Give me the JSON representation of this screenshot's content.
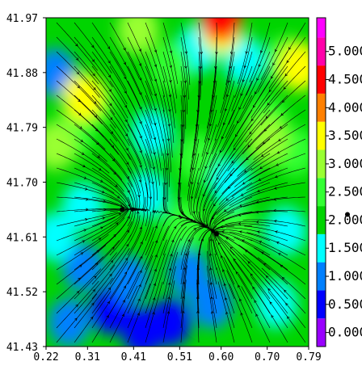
{
  "chart_data": {
    "type": "heatmap",
    "title": "",
    "xlabel": "",
    "ylabel": "",
    "xlim": [
      0.22,
      0.79
    ],
    "ylim": [
      41.43,
      41.97
    ],
    "x_ticks": [
      "0.22",
      "0.31",
      "0.41",
      "0.51",
      "0.60",
      "0.70",
      "0.79"
    ],
    "y_ticks": [
      "41.43",
      "41.52",
      "41.61",
      "41.70",
      "41.79",
      "41.88",
      "41.97"
    ],
    "overlay": "streamlines",
    "colorbar": {
      "ticks": [
        "0.000",
        "0.500",
        "1.000",
        "1.500",
        "2.000",
        "2.500",
        "3.000",
        "3.500",
        "4.000",
        "4.500",
        "5.000"
      ],
      "bands": [
        {
          "from": -0.25,
          "to": 0.25,
          "color": "#9900ff"
        },
        {
          "from": 0.25,
          "to": 0.75,
          "color": "#0000ff"
        },
        {
          "from": 0.75,
          "to": 1.25,
          "color": "#0080ff"
        },
        {
          "from": 1.25,
          "to": 1.75,
          "color": "#00ffff"
        },
        {
          "from": 1.75,
          "to": 2.25,
          "color": "#00d400"
        },
        {
          "from": 2.25,
          "to": 2.75,
          "color": "#33ff33"
        },
        {
          "from": 2.75,
          "to": 3.25,
          "color": "#99ff33"
        },
        {
          "from": 3.25,
          "to": 3.75,
          "color": "#ffff00"
        },
        {
          "from": 3.75,
          "to": 4.25,
          "color": "#ff8000"
        },
        {
          "from": 4.25,
          "to": 4.75,
          "color": "#ff0000"
        },
        {
          "from": 4.75,
          "to": 5.25,
          "color": "#ff00aa"
        },
        {
          "from": 5.25,
          "to": 5.6,
          "color": "#ff00ff"
        }
      ]
    },
    "points": [
      {
        "x": 0.385,
        "y": 41.655
      },
      {
        "x": 0.59,
        "y": 41.615
      }
    ],
    "field_patches": [
      {
        "x": 0.43,
        "y": 41.455,
        "v": 0.4
      },
      {
        "x": 0.49,
        "y": 41.47,
        "v": 0.4
      },
      {
        "x": 0.36,
        "y": 41.49,
        "v": 0.6
      },
      {
        "x": 0.27,
        "y": 41.47,
        "v": 1.0
      },
      {
        "x": 0.3,
        "y": 41.56,
        "v": 1.1
      },
      {
        "x": 0.4,
        "y": 41.54,
        "v": 1.0
      },
      {
        "x": 0.53,
        "y": 41.55,
        "v": 0.9
      },
      {
        "x": 0.58,
        "y": 41.5,
        "v": 1.1
      },
      {
        "x": 0.72,
        "y": 41.5,
        "v": 1.5
      },
      {
        "x": 0.3,
        "y": 41.66,
        "v": 1.5
      },
      {
        "x": 0.24,
        "y": 41.61,
        "v": 1.3
      },
      {
        "x": 0.44,
        "y": 41.68,
        "v": 1.6
      },
      {
        "x": 0.45,
        "y": 41.78,
        "v": 1.4
      },
      {
        "x": 0.74,
        "y": 41.62,
        "v": 1.6
      },
      {
        "x": 0.62,
        "y": 41.7,
        "v": 1.6
      },
      {
        "x": 0.24,
        "y": 41.88,
        "v": 1.2
      },
      {
        "x": 0.55,
        "y": 41.92,
        "v": 1.5
      },
      {
        "x": 0.65,
        "y": 41.9,
        "v": 1.5
      },
      {
        "x": 0.32,
        "y": 41.83,
        "v": 2.7
      },
      {
        "x": 0.28,
        "y": 41.78,
        "v": 2.4
      },
      {
        "x": 0.49,
        "y": 41.89,
        "v": 2.6
      },
      {
        "x": 0.42,
        "y": 41.95,
        "v": 2.8
      },
      {
        "x": 0.55,
        "y": 41.74,
        "v": 2.5
      },
      {
        "x": 0.52,
        "y": 41.63,
        "v": 2.4
      },
      {
        "x": 0.63,
        "y": 41.62,
        "v": 2.5
      },
      {
        "x": 0.7,
        "y": 41.8,
        "v": 2.6
      },
      {
        "x": 0.76,
        "y": 41.75,
        "v": 2.5
      },
      {
        "x": 0.74,
        "y": 41.9,
        "v": 2.7
      },
      {
        "x": 0.3,
        "y": 41.84,
        "v": 3.3
      },
      {
        "x": 0.6,
        "y": 41.95,
        "v": 3.6
      },
      {
        "x": 0.7,
        "y": 41.77,
        "v": 3.2
      },
      {
        "x": 0.77,
        "y": 41.89,
        "v": 3.5
      },
      {
        "x": 0.24,
        "y": 41.76,
        "v": 3.1
      },
      {
        "x": 0.6,
        "y": 41.97,
        "v": 4.6
      }
    ],
    "vector_field": {
      "convergence": [
        {
          "x": 0.385,
          "y": 41.655
        },
        {
          "x": 0.59,
          "y": 41.615
        }
      ],
      "outflow": {
        "x": 0.79,
        "y": 41.97
      }
    }
  }
}
